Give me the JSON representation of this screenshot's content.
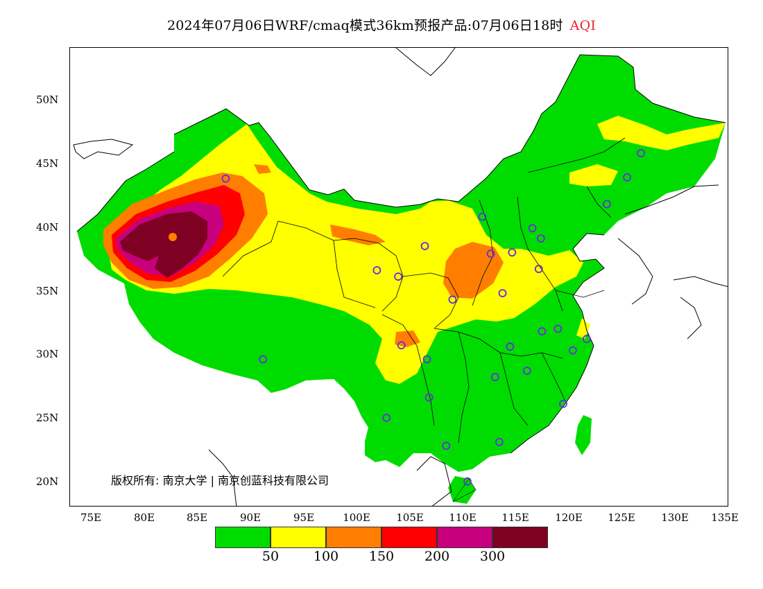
{
  "title": {
    "main": "2024年07月06日WRF/cmaq模式36km预报产品:07月06日18时",
    "product": "AQI",
    "product_color": "#e8242a"
  },
  "copyright": "版权所有: 南京大学 | 南京创蓝科技有限公司",
  "axes": {
    "lat_labels": [
      "50N",
      "45N",
      "40N",
      "35N",
      "30N",
      "25N",
      "20N"
    ],
    "lon_labels": [
      "75E",
      "80E",
      "85E",
      "90E",
      "95E",
      "100E",
      "105E",
      "110E",
      "115E",
      "120E",
      "125E",
      "130E",
      "135E"
    ]
  },
  "legend": {
    "colors": [
      "#00dc00",
      "#ffff00",
      "#ff7e00",
      "#ff0000",
      "#c8007d",
      "#7e0023"
    ],
    "ticks": [
      "50",
      "100",
      "150",
      "200",
      "300"
    ]
  },
  "stations": [
    [
      87.6,
      43.8
    ],
    [
      91.1,
      29.6
    ],
    [
      101.8,
      36.6
    ],
    [
      103.8,
      36.1
    ],
    [
      106.3,
      38.5
    ],
    [
      111.7,
      40.8
    ],
    [
      112.5,
      37.9
    ],
    [
      114.5,
      38.0
    ],
    [
      116.4,
      39.9
    ],
    [
      117.2,
      39.1
    ],
    [
      117.0,
      36.7
    ],
    [
      113.6,
      34.8
    ],
    [
      108.9,
      34.3
    ],
    [
      104.1,
      30.7
    ],
    [
      106.5,
      29.6
    ],
    [
      106.7,
      26.6
    ],
    [
      102.7,
      25.0
    ],
    [
      108.3,
      22.8
    ],
    [
      113.3,
      23.1
    ],
    [
      110.3,
      20.0
    ],
    [
      112.9,
      28.2
    ],
    [
      115.9,
      28.7
    ],
    [
      114.3,
      30.6
    ],
    [
      117.3,
      31.8
    ],
    [
      118.8,
      32.0
    ],
    [
      120.2,
      30.3
    ],
    [
      121.5,
      31.2
    ],
    [
      119.3,
      26.1
    ],
    [
      123.4,
      41.8
    ],
    [
      125.3,
      43.9
    ],
    [
      126.6,
      45.8
    ]
  ]
}
